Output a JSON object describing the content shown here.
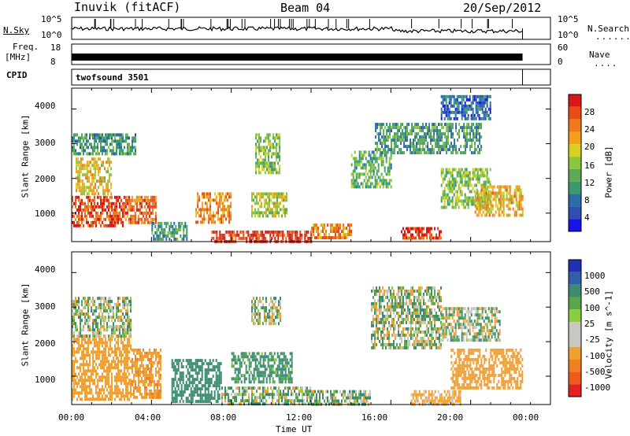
{
  "header": {
    "station": "Inuvik (fitACF)",
    "beam": "Beam 04",
    "date": "20/Sep/2012"
  },
  "top_panels": {
    "nsky_label": "N.Sky",
    "nsky_ticks": [
      "10^5",
      "10^0"
    ],
    "nsearch_label": "N.Search",
    "nsearch_ticks": [
      "10^5",
      "10^0"
    ],
    "freq_label": "Freq.",
    "freq_unit": "[MHz]",
    "freq_ticks": [
      "18",
      "8"
    ],
    "nave_label": "Nave",
    "nave_ticks": [
      "60",
      "0"
    ],
    "cpid_label": "CPID",
    "cpid_value": "twofsound 3501"
  },
  "colorbars": {
    "power": {
      "title": "Power [dB]",
      "ticks": [
        "28",
        "24",
        "20",
        "16",
        "12",
        "8",
        "4"
      ],
      "colors": [
        "#1414e6",
        "#2f4fb0",
        "#2a6ea8",
        "#3a9a6e",
        "#5caa55",
        "#8cc63f",
        "#d8d020",
        "#f2a01a",
        "#ef7a1a",
        "#e84a18",
        "#d81818"
      ]
    },
    "velocity": {
      "title": "Velocity [m s^-1]",
      "ticks": [
        "1000",
        "500",
        "100",
        "25",
        "-25",
        "-100",
        "-500",
        "-1000"
      ],
      "colors": [
        "#2030b0",
        "#2f5fa8",
        "#3e8a70",
        "#58a64a",
        "#8ccd40",
        "#c8c8c0",
        "#c8c8c0",
        "#f0a030",
        "#f08020",
        "#ee5a18",
        "#e42020"
      ]
    }
  },
  "axes": {
    "ylabel": "Slant Range [km]",
    "yticks": [
      "4000",
      "3000",
      "2000",
      "1000"
    ],
    "xticks": [
      "00:00",
      "04:00",
      "08:00",
      "12:00",
      "16:00",
      "20:00",
      "00:00"
    ],
    "xlabel": "Time UT"
  },
  "chart_data": [
    {
      "type": "heatmap",
      "title": "Power [dB]",
      "x_unit": "hours UT",
      "xlim": [
        0,
        24
      ],
      "ylim": [
        180,
        4600
      ],
      "ylabel": "Slant Range [km]",
      "color_scale": [
        0,
        30
      ],
      "data_end_hour": 22.6,
      "regions": [
        {
          "t": [
            0.0,
            2.6
          ],
          "r": [
            600,
            1500
          ],
          "v": 26
        },
        {
          "t": [
            2.6,
            4.2
          ],
          "r": [
            700,
            1500
          ],
          "v": 24
        },
        {
          "t": [
            0.2,
            2.0
          ],
          "r": [
            1600,
            2600
          ],
          "v": 18
        },
        {
          "t": [
            0.0,
            3.2
          ],
          "r": [
            2700,
            3300
          ],
          "v": 10
        },
        {
          "t": [
            4.0,
            5.8
          ],
          "r": [
            250,
            750
          ],
          "v": 10
        },
        {
          "t": [
            6.2,
            8.0
          ],
          "r": [
            700,
            1600
          ],
          "v": 22
        },
        {
          "t": [
            7.0,
            12.0
          ],
          "r": [
            200,
            500
          ],
          "v": 28
        },
        {
          "t": [
            9.0,
            10.8
          ],
          "r": [
            900,
            1600
          ],
          "v": 16
        },
        {
          "t": [
            9.2,
            10.4
          ],
          "r": [
            2200,
            3300
          ],
          "v": 14
        },
        {
          "t": [
            12.0,
            14.0
          ],
          "r": [
            250,
            700
          ],
          "v": 22
        },
        {
          "t": [
            14.0,
            16.0
          ],
          "r": [
            1800,
            2800
          ],
          "v": 12
        },
        {
          "t": [
            15.2,
            20.5
          ],
          "r": [
            2700,
            3600
          ],
          "v": 10
        },
        {
          "t": [
            16.5,
            18.5
          ],
          "r": [
            250,
            600
          ],
          "v": 27
        },
        {
          "t": [
            18.5,
            21.0
          ],
          "r": [
            1200,
            2300
          ],
          "v": 14
        },
        {
          "t": [
            20.2,
            22.6
          ],
          "r": [
            900,
            1800
          ],
          "v": 20
        },
        {
          "t": [
            18.5,
            21.0
          ],
          "r": [
            3700,
            4400
          ],
          "v": 6
        }
      ]
    },
    {
      "type": "heatmap",
      "title": "Velocity [m s^-1]",
      "x_unit": "hours UT",
      "xlim": [
        0,
        24
      ],
      "ylim": [
        180,
        4600
      ],
      "ylabel": "Slant Range [km]",
      "data_end_hour": 22.6,
      "regions": [
        {
          "t": [
            0.0,
            3.0
          ],
          "r": [
            300,
            2200
          ],
          "v": -300
        },
        {
          "t": [
            3.0,
            4.5
          ],
          "r": [
            400,
            1800
          ],
          "v": -400
        },
        {
          "t": [
            0.0,
            3.0
          ],
          "r": [
            2200,
            3300
          ],
          "v": 0
        },
        {
          "t": [
            5.0,
            7.5
          ],
          "r": [
            250,
            1500
          ],
          "v": 300
        },
        {
          "t": [
            7.5,
            12.0
          ],
          "r": [
            200,
            700
          ],
          "v": 60
        },
        {
          "t": [
            8.0,
            11.0
          ],
          "r": [
            800,
            1700
          ],
          "v": 200
        },
        {
          "t": [
            9.0,
            10.5
          ],
          "r": [
            2500,
            3300
          ],
          "v": 0
        },
        {
          "t": [
            12.0,
            15.0
          ],
          "r": [
            200,
            600
          ],
          "v": 40
        },
        {
          "t": [
            15.0,
            18.5
          ],
          "r": [
            1800,
            3600
          ],
          "v": 0
        },
        {
          "t": [
            17.0,
            19.5
          ],
          "r": [
            200,
            600
          ],
          "v": -200
        },
        {
          "t": [
            19.0,
            22.6
          ],
          "r": [
            700,
            1800
          ],
          "v": -300
        },
        {
          "t": [
            18.5,
            21.5
          ],
          "r": [
            2000,
            3000
          ],
          "v": 10
        }
      ]
    }
  ]
}
